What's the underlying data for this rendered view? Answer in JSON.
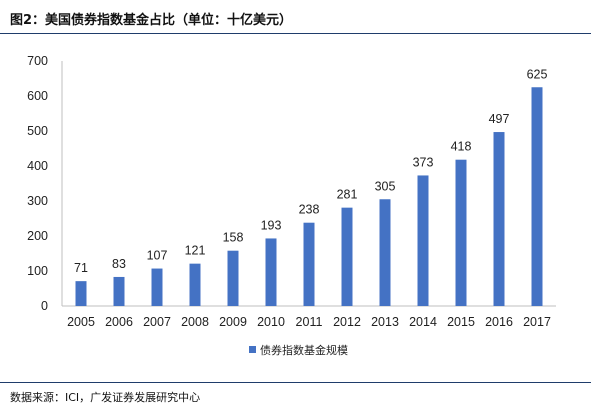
{
  "header": {
    "title": "图2：美国债券指数基金占比（单位：十亿美元）"
  },
  "footer": {
    "source": "数据来源：ICI，广发证券发展研究中心"
  },
  "colors": {
    "bar": "#4472c4",
    "rule": "#1f3d6b",
    "axis": "#bfbfbf"
  },
  "chart_data": {
    "type": "bar",
    "title": "",
    "xlabel": "",
    "ylabel": "",
    "categories": [
      "2005",
      "2006",
      "2007",
      "2008",
      "2009",
      "2010",
      "2011",
      "2012",
      "2013",
      "2014",
      "2015",
      "2016",
      "2017"
    ],
    "series": [
      {
        "name": "债券指数基金规模",
        "values": [
          71,
          83,
          107,
          121,
          158,
          193,
          238,
          281,
          305,
          373,
          418,
          497,
          625
        ]
      }
    ],
    "ylim": [
      0,
      700
    ],
    "yticks": [
      0,
      100,
      200,
      300,
      400,
      500,
      600,
      700
    ],
    "grid": false,
    "legend_position": "bottom"
  }
}
